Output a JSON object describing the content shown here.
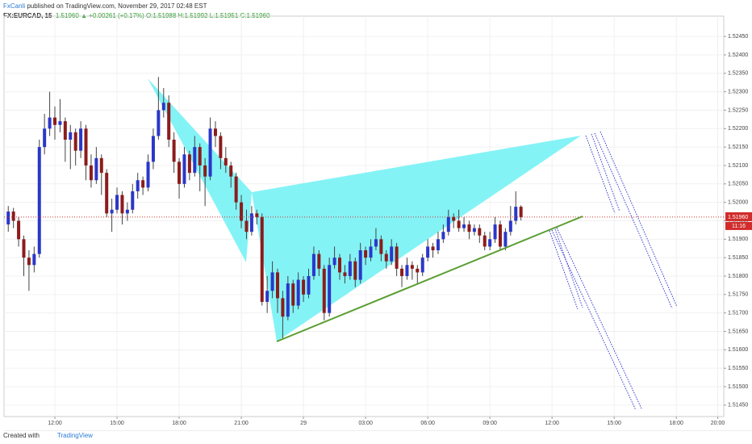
{
  "header": {
    "publisher": "FxCanli",
    "published": "published on TradingView.com, November 29, 2017 02:48 EST",
    "symbol": "FX:EURCAD, 15",
    "last": "1.51960",
    "change": "▲ +0.00261 (+0.17%)",
    "open": "O:1.51988",
    "high": "H:1.51992",
    "low": "L:1.51951",
    "close": "C:1.51960"
  },
  "footer": {
    "created": "Created with",
    "brand": "TradingView"
  },
  "price_badge": {
    "price": "1.51960",
    "countdown": "11:16"
  },
  "chart_data": {
    "type": "candlestick",
    "series_color_up": "#2b37c9",
    "series_color_down": "#8c1c1c",
    "xlim": [
      9.546,
      44.29
    ],
    "ylim": [
      1.51419,
      1.52505
    ],
    "grid": true,
    "xticks": [
      {
        "value": 12,
        "label": "12:00"
      },
      {
        "value": 15,
        "label": "15:00"
      },
      {
        "value": 18,
        "label": "18:00"
      },
      {
        "value": 21,
        "label": "21:00"
      },
      {
        "value": 24,
        "label": "29"
      },
      {
        "value": 27,
        "label": "03:00"
      },
      {
        "value": 30,
        "label": "06:00"
      },
      {
        "value": 33,
        "label": "09:00"
      },
      {
        "value": 36,
        "label": "12:00"
      },
      {
        "value": 39,
        "label": "15:00"
      },
      {
        "value": 42,
        "label": "18:00"
      },
      {
        "value": 44,
        "label": "20:00"
      }
    ],
    "yticks": [
      {
        "value": 1.5145,
        "label": "1.51450"
      },
      {
        "value": 1.515,
        "label": "1.51500"
      },
      {
        "value": 1.5155,
        "label": "1.51550"
      },
      {
        "value": 1.516,
        "label": "1.51600"
      },
      {
        "value": 1.5165,
        "label": "1.51650"
      },
      {
        "value": 1.517,
        "label": "1.51700"
      },
      {
        "value": 1.5175,
        "label": "1.51750"
      },
      {
        "value": 1.518,
        "label": "1.51800"
      },
      {
        "value": 1.5185,
        "label": "1.51850"
      },
      {
        "value": 1.519,
        "label": "1.51900"
      },
      {
        "value": 1.5195,
        "label": "1.51950"
      },
      {
        "value": 1.52,
        "label": "1.52000"
      },
      {
        "value": 1.5205,
        "label": "1.52050"
      },
      {
        "value": 1.521,
        "label": "1.52100"
      },
      {
        "value": 1.5215,
        "label": "1.52150"
      },
      {
        "value": 1.522,
        "label": "1.52200"
      },
      {
        "value": 1.5225,
        "label": "1.52250"
      },
      {
        "value": 1.523,
        "label": "1.52300"
      },
      {
        "value": 1.5235,
        "label": "1.52350"
      },
      {
        "value": 1.524,
        "label": "1.52400"
      },
      {
        "value": 1.5245,
        "label": "1.52450"
      }
    ],
    "x": [
      9.75,
      10,
      10.25,
      10.5,
      10.75,
      11,
      11.25,
      11.5,
      11.75,
      12,
      12.25,
      12.5,
      12.75,
      13,
      13.25,
      13.5,
      13.75,
      14,
      14.25,
      14.5,
      14.75,
      15,
      15.25,
      15.5,
      15.75,
      16,
      16.25,
      16.5,
      16.75,
      17,
      17.25,
      17.5,
      17.75,
      18,
      18.25,
      18.5,
      18.75,
      19,
      19.25,
      19.5,
      19.75,
      20,
      20.25,
      20.5,
      20.75,
      21,
      21.25,
      21.5,
      21.75,
      22,
      22.25,
      22.5,
      22.75,
      23,
      23.25,
      23.5,
      23.75,
      24,
      24.25,
      24.5,
      24.75,
      25,
      25.25,
      25.5,
      25.75,
      26,
      26.25,
      26.5,
      26.75,
      27,
      27.25,
      27.5,
      27.75,
      28,
      28.25,
      28.5,
      28.75,
      29,
      29.25,
      29.5,
      29.75,
      30,
      30.25,
      30.5,
      30.75,
      31,
      31.25,
      31.5,
      31.75,
      32,
      32.25,
      32.5,
      32.75,
      33,
      33.25,
      33.5,
      33.75,
      34,
      34.25,
      34.5
    ],
    "ohlc": [
      [
        1.5194,
        1.5199,
        1.5192,
        1.51975
      ],
      [
        1.51975,
        1.51985,
        1.5193,
        1.5195
      ],
      [
        1.5195,
        1.5196,
        1.5188,
        1.519
      ],
      [
        1.519,
        1.5191,
        1.518,
        1.5185
      ],
      [
        1.5185,
        1.5187,
        1.5176,
        1.5183
      ],
      [
        1.5183,
        1.5188,
        1.5181,
        1.5186
      ],
      [
        1.5186,
        1.5217,
        1.5185,
        1.5215
      ],
      [
        1.5215,
        1.5224,
        1.5213,
        1.522
      ],
      [
        1.522,
        1.523,
        1.5218,
        1.5223
      ],
      [
        1.5223,
        1.5226,
        1.5217,
        1.5221
      ],
      [
        1.5221,
        1.5228,
        1.5219,
        1.5222
      ],
      [
        1.5222,
        1.5223,
        1.5211,
        1.5217
      ],
      [
        1.5217,
        1.5221,
        1.5209,
        1.5219
      ],
      [
        1.5219,
        1.522,
        1.521,
        1.5214
      ],
      [
        1.5214,
        1.5222,
        1.5212,
        1.522
      ],
      [
        1.522,
        1.5221,
        1.5206,
        1.521
      ],
      [
        1.521,
        1.5213,
        1.5204,
        1.5206
      ],
      [
        1.5206,
        1.5215,
        1.5205,
        1.5212
      ],
      [
        1.5212,
        1.5213,
        1.5202,
        1.5208
      ],
      [
        1.5208,
        1.5209,
        1.5196,
        1.5197
      ],
      [
        1.5197,
        1.5201,
        1.5192,
        1.5198
      ],
      [
        1.5198,
        1.5204,
        1.5197,
        1.5202
      ],
      [
        1.5202,
        1.5203,
        1.5194,
        1.5197
      ],
      [
        1.5197,
        1.52,
        1.5195,
        1.5198
      ],
      [
        1.5198,
        1.5205,
        1.5197,
        1.5203
      ],
      [
        1.5203,
        1.5208,
        1.5201,
        1.5206
      ],
      [
        1.5206,
        1.5207,
        1.5202,
        1.5204
      ],
      [
        1.5204,
        1.5213,
        1.5203,
        1.5211
      ],
      [
        1.5211,
        1.522,
        1.5209,
        1.5218
      ],
      [
        1.5218,
        1.5234,
        1.5217,
        1.5225
      ],
      [
        1.5225,
        1.5231,
        1.5223,
        1.5227
      ],
      [
        1.5227,
        1.5229,
        1.5215,
        1.5217
      ],
      [
        1.5217,
        1.5219,
        1.5208,
        1.5211
      ],
      [
        1.5211,
        1.5212,
        1.5201,
        1.5205
      ],
      [
        1.5205,
        1.5215,
        1.5204,
        1.5213
      ],
      [
        1.5213,
        1.5214,
        1.5206,
        1.5208
      ],
      [
        1.5208,
        1.5218,
        1.5207,
        1.5215
      ],
      [
        1.5215,
        1.5216,
        1.5203,
        1.521
      ],
      [
        1.521,
        1.5212,
        1.5199,
        1.5207
      ],
      [
        1.5207,
        1.5223,
        1.5206,
        1.522
      ],
      [
        1.522,
        1.5222,
        1.5215,
        1.5218
      ],
      [
        1.5218,
        1.5219,
        1.5209,
        1.5212
      ],
      [
        1.5212,
        1.5215,
        1.5208,
        1.521
      ],
      [
        1.521,
        1.5211,
        1.5204,
        1.5207
      ],
      [
        1.5207,
        1.5208,
        1.5198,
        1.52
      ],
      [
        1.52,
        1.5202,
        1.5193,
        1.5195
      ],
      [
        1.5195,
        1.5198,
        1.519,
        1.5192
      ],
      [
        1.5192,
        1.5199,
        1.5191,
        1.5197
      ],
      [
        1.5197,
        1.5198,
        1.5194,
        1.5196
      ],
      [
        1.5196,
        1.5197,
        1.5172,
        1.5173
      ],
      [
        1.5173,
        1.518,
        1.517,
        1.5176
      ],
      [
        1.5176,
        1.5184,
        1.5174,
        1.5181
      ],
      [
        1.5181,
        1.5182,
        1.517,
        1.5174
      ],
      [
        1.5174,
        1.5176,
        1.5163,
        1.5169
      ],
      [
        1.5169,
        1.518,
        1.5168,
        1.5178
      ],
      [
        1.5178,
        1.5179,
        1.517,
        1.5172
      ],
      [
        1.5172,
        1.5181,
        1.5171,
        1.5179
      ],
      [
        1.5179,
        1.518,
        1.5173,
        1.5175
      ],
      [
        1.5175,
        1.5182,
        1.5174,
        1.518
      ],
      [
        1.518,
        1.5188,
        1.5179,
        1.5186
      ],
      [
        1.5186,
        1.5187,
        1.518,
        1.5182
      ],
      [
        1.5182,
        1.5183,
        1.5168,
        1.517
      ],
      [
        1.517,
        1.5185,
        1.5169,
        1.5183
      ],
      [
        1.5183,
        1.5188,
        1.5182,
        1.5185
      ],
      [
        1.5185,
        1.5186,
        1.5179,
        1.5181
      ],
      [
        1.5181,
        1.5183,
        1.5178,
        1.518
      ],
      [
        1.518,
        1.5186,
        1.5179,
        1.5184
      ],
      [
        1.5184,
        1.5185,
        1.5177,
        1.5179
      ],
      [
        1.5179,
        1.5189,
        1.5178,
        1.5187
      ],
      [
        1.5187,
        1.5188,
        1.5183,
        1.5185
      ],
      [
        1.5185,
        1.519,
        1.5184,
        1.5188
      ],
      [
        1.5188,
        1.5193,
        1.5187,
        1.519
      ],
      [
        1.519,
        1.5191,
        1.5184,
        1.5186
      ],
      [
        1.5186,
        1.5187,
        1.5182,
        1.5184
      ],
      [
        1.5184,
        1.519,
        1.5183,
        1.5188
      ],
      [
        1.5188,
        1.5189,
        1.518,
        1.5182
      ],
      [
        1.5182,
        1.5183,
        1.5177,
        1.518
      ],
      [
        1.518,
        1.5185,
        1.5179,
        1.5183
      ],
      [
        1.5183,
        1.5184,
        1.5179,
        1.5182
      ],
      [
        1.5182,
        1.5183,
        1.5178,
        1.5181
      ],
      [
        1.5181,
        1.5186,
        1.518,
        1.5185
      ],
      [
        1.5185,
        1.519,
        1.5184,
        1.5188
      ],
      [
        1.5188,
        1.5189,
        1.5185,
        1.5187
      ],
      [
        1.5187,
        1.5192,
        1.5186,
        1.519
      ],
      [
        1.519,
        1.5194,
        1.5189,
        1.5192
      ],
      [
        1.5192,
        1.5198,
        1.5191,
        1.5196
      ],
      [
        1.5196,
        1.5197,
        1.5193,
        1.5195
      ],
      [
        1.5195,
        1.5198,
        1.5192,
        1.5193
      ],
      [
        1.5193,
        1.5196,
        1.5192,
        1.5194
      ],
      [
        1.5194,
        1.5195,
        1.519,
        1.5192
      ],
      [
        1.5192,
        1.5194,
        1.5191,
        1.5193
      ],
      [
        1.5193,
        1.5194,
        1.5189,
        1.5191
      ],
      [
        1.5191,
        1.5192,
        1.5187,
        1.5188
      ],
      [
        1.5188,
        1.5192,
        1.5187,
        1.519
      ],
      [
        1.519,
        1.5196,
        1.5189,
        1.5194
      ],
      [
        1.5194,
        1.5195,
        1.5187,
        1.5188
      ],
      [
        1.5188,
        1.5193,
        1.5187,
        1.5192
      ],
      [
        1.5192,
        1.5199,
        1.5191,
        1.5195
      ],
      [
        1.5195,
        1.5203,
        1.5194,
        1.51988
      ],
      [
        1.51988,
        1.51992,
        1.51951,
        1.5196
      ]
    ]
  }
}
